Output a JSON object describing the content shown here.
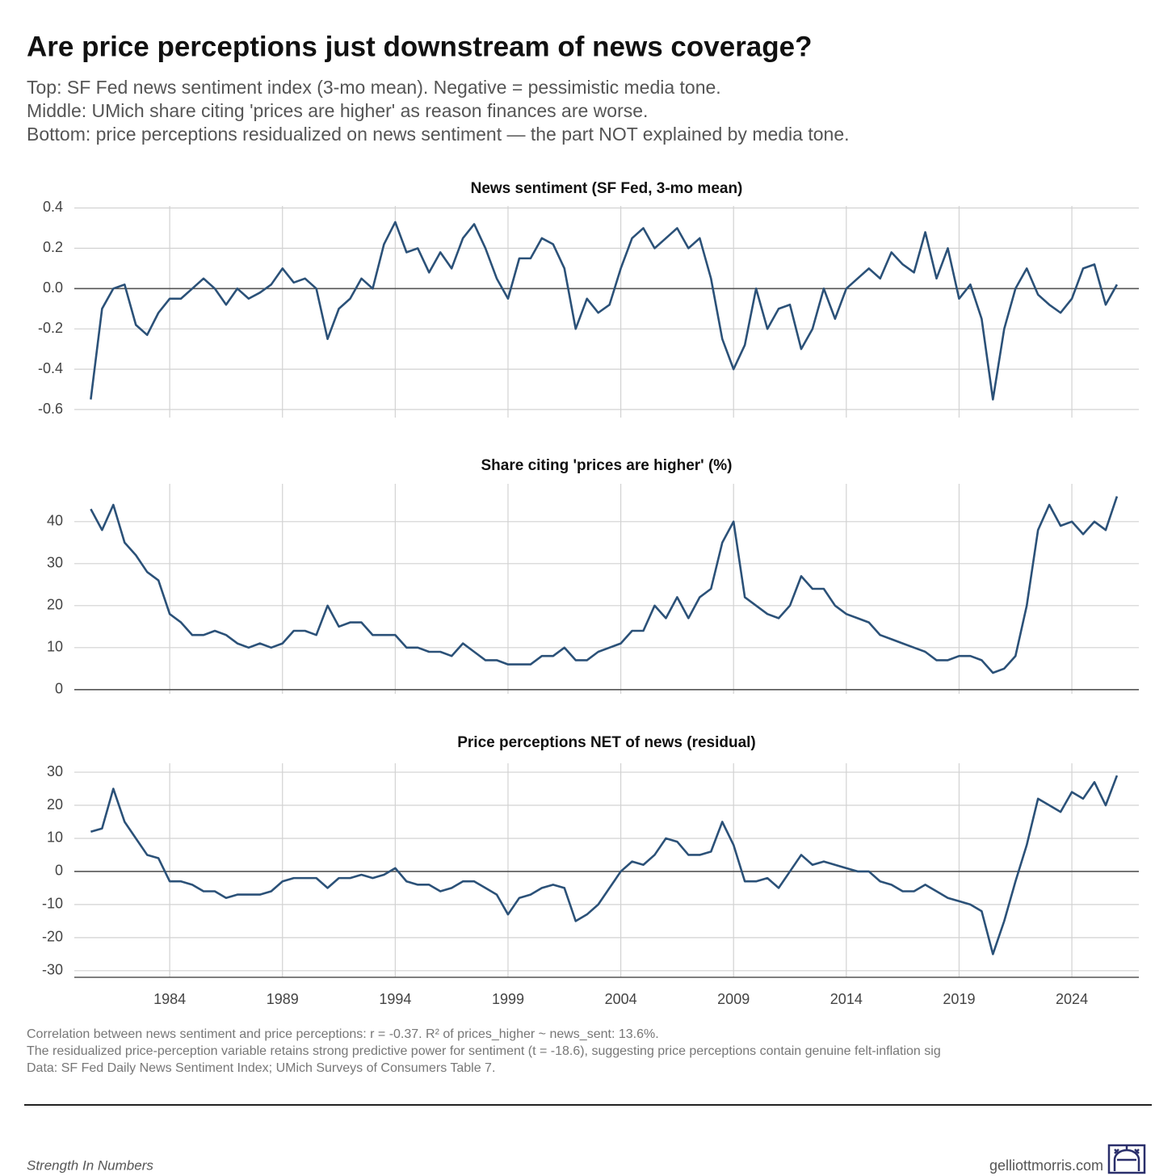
{
  "title": "Are price perceptions just downstream of news coverage?",
  "subtitle": [
    "Top: SF Fed news sentiment index (3-mo mean). Negative = pessimistic media tone.",
    "Middle: UMich share citing 'prices are higher' as reason finances are worse.",
    "Bottom: price perceptions residualized on news sentiment — the part NOT explained by media tone."
  ],
  "notes": [
    "Correlation between news sentiment and price perceptions: r = -0.37. R² of prices_higher ~ news_sent: 13.6%.",
    "The residualized price-perception variable retains strong predictive power for sentiment (t = -18.6), suggesting price perceptions contain genuine felt-inflation sig",
    "Data: SF Fed Daily News Sentiment Index; UMich Surveys of Consumers Table 7."
  ],
  "footer": {
    "left": "Strength In Numbers",
    "right": "gelliottmorris.com"
  },
  "chart_data": [
    {
      "type": "line",
      "title": "News sentiment (SF Fed, 3-mo mean)",
      "x": [
        1980.5,
        1981,
        1981.5,
        1982,
        1982.5,
        1983,
        1983.5,
        1984,
        1984.5,
        1985,
        1985.5,
        1986,
        1986.5,
        1987,
        1987.5,
        1988,
        1988.5,
        1989,
        1989.5,
        1990,
        1990.5,
        1991,
        1991.5,
        1992,
        1992.5,
        1993,
        1993.5,
        1994,
        1994.5,
        1995,
        1995.5,
        1996,
        1996.5,
        1997,
        1997.5,
        1998,
        1998.5,
        1999,
        1999.5,
        2000,
        2000.5,
        2001,
        2001.5,
        2002,
        2002.5,
        2003,
        2003.5,
        2004,
        2004.5,
        2005,
        2005.5,
        2006,
        2006.5,
        2007,
        2007.5,
        2008,
        2008.5,
        2009,
        2009.5,
        2010,
        2010.5,
        2011,
        2011.5,
        2012,
        2012.5,
        2013,
        2013.5,
        2014,
        2014.5,
        2015,
        2015.5,
        2016,
        2016.5,
        2017,
        2017.5,
        2018,
        2018.5,
        2019,
        2019.5,
        2020,
        2020.5,
        2021,
        2021.5,
        2022,
        2022.5,
        2023,
        2023.5,
        2024,
        2024.5,
        2025,
        2025.5,
        2026
      ],
      "series": [
        {
          "color": "#2b5178",
          "values": [
            -0.55,
            -0.1,
            0.0,
            0.02,
            -0.18,
            -0.23,
            -0.12,
            -0.05,
            -0.05,
            0.0,
            0.05,
            0.0,
            -0.08,
            0.0,
            -0.05,
            -0.02,
            0.02,
            0.1,
            0.03,
            0.05,
            0.0,
            -0.25,
            -0.1,
            -0.05,
            0.05,
            0.0,
            0.22,
            0.33,
            0.18,
            0.2,
            0.08,
            0.18,
            0.1,
            0.25,
            0.32,
            0.2,
            0.05,
            -0.05,
            0.15,
            0.15,
            0.25,
            0.22,
            0.1,
            -0.2,
            -0.05,
            -0.12,
            -0.08,
            0.1,
            0.25,
            0.3,
            0.2,
            0.25,
            0.3,
            0.2,
            0.25,
            0.05,
            -0.25,
            -0.4,
            -0.28,
            0.0,
            -0.2,
            -0.1,
            -0.08,
            -0.3,
            -0.2,
            0.0,
            -0.15,
            0.0,
            0.05,
            0.1,
            0.05,
            0.18,
            0.12,
            0.08,
            0.28,
            0.05,
            0.2,
            -0.05,
            0.02,
            -0.15,
            -0.55,
            -0.2,
            0.0,
            0.1,
            -0.03,
            -0.08,
            -0.12,
            -0.05,
            0.1,
            0.12,
            -0.08,
            0.02
          ]
        }
      ],
      "xlim": [
        1979.77,
        2026.97
      ],
      "ylim": [
        -0.64,
        0.41
      ],
      "yticks": [
        {
          "value": -0.6,
          "label": "-0.6"
        },
        -0.4,
        -0.2,
        {
          "value": 0,
          "label": "0.0"
        },
        0.2,
        0.4
      ]
    },
    {
      "type": "line",
      "title": "Share citing 'prices are higher' (%)",
      "x": [
        1980.5,
        1981,
        1981.5,
        1982,
        1982.5,
        1983,
        1983.5,
        1984,
        1984.5,
        1985,
        1985.5,
        1986,
        1986.5,
        1987,
        1987.5,
        1988,
        1988.5,
        1989,
        1989.5,
        1990,
        1990.5,
        1991,
        1991.5,
        1992,
        1992.5,
        1993,
        1993.5,
        1994,
        1994.5,
        1995,
        1995.5,
        1996,
        1996.5,
        1997,
        1997.5,
        1998,
        1998.5,
        1999,
        1999.5,
        2000,
        2000.5,
        2001,
        2001.5,
        2002,
        2002.5,
        2003,
        2003.5,
        2004,
        2004.5,
        2005,
        2005.5,
        2006,
        2006.5,
        2007,
        2007.5,
        2008,
        2008.5,
        2009,
        2009.5,
        2010,
        2010.5,
        2011,
        2011.5,
        2012,
        2012.5,
        2013,
        2013.5,
        2014,
        2014.5,
        2015,
        2015.5,
        2016,
        2016.5,
        2017,
        2017.5,
        2018,
        2018.5,
        2019,
        2019.5,
        2020,
        2020.5,
        2021,
        2021.5,
        2022,
        2022.5,
        2023,
        2023.5,
        2024,
        2024.5,
        2025,
        2025.5,
        2026
      ],
      "series": [
        {
          "color": "#2b5178",
          "values": [
            43,
            38,
            44,
            35,
            32,
            28,
            26,
            18,
            16,
            13,
            13,
            14,
            13,
            11,
            10,
            11,
            10,
            11,
            14,
            14,
            13,
            20,
            15,
            16,
            16,
            13,
            13,
            13,
            10,
            10,
            9,
            9,
            8,
            11,
            9,
            7,
            7,
            6,
            6,
            6,
            8,
            8,
            10,
            7,
            7,
            9,
            10,
            11,
            14,
            14,
            20,
            17,
            22,
            17,
            22,
            24,
            35,
            40,
            22,
            20,
            18,
            17,
            20,
            27,
            24,
            24,
            20,
            18,
            17,
            16,
            13,
            12,
            11,
            10,
            9,
            7,
            7,
            8,
            8,
            7,
            4,
            5,
            8,
            20,
            38,
            44,
            39,
            40,
            37,
            40,
            38,
            46
          ]
        }
      ],
      "xlim": [
        1979.77,
        2026.97
      ],
      "ylim": [
        -1,
        49
      ],
      "yticks": [
        0,
        10,
        20,
        30,
        40
      ]
    },
    {
      "type": "line",
      "title": "Price perceptions NET of news (residual)",
      "x": [
        1980.5,
        1981,
        1981.5,
        1982,
        1982.5,
        1983,
        1983.5,
        1984,
        1984.5,
        1985,
        1985.5,
        1986,
        1986.5,
        1987,
        1987.5,
        1988,
        1988.5,
        1989,
        1989.5,
        1990,
        1990.5,
        1991,
        1991.5,
        1992,
        1992.5,
        1993,
        1993.5,
        1994,
        1994.5,
        1995,
        1995.5,
        1996,
        1996.5,
        1997,
        1997.5,
        1998,
        1998.5,
        1999,
        1999.5,
        2000,
        2000.5,
        2001,
        2001.5,
        2002,
        2002.5,
        2003,
        2003.5,
        2004,
        2004.5,
        2005,
        2005.5,
        2006,
        2006.5,
        2007,
        2007.5,
        2008,
        2008.5,
        2009,
        2009.5,
        2010,
        2010.5,
        2011,
        2011.5,
        2012,
        2012.5,
        2013,
        2013.5,
        2014,
        2014.5,
        2015,
        2015.5,
        2016,
        2016.5,
        2017,
        2017.5,
        2018,
        2018.5,
        2019,
        2019.5,
        2020,
        2020.5,
        2021,
        2021.5,
        2022,
        2022.5,
        2023,
        2023.5,
        2024,
        2024.5,
        2025,
        2025.5,
        2026
      ],
      "series": [
        {
          "color": "#2b5178",
          "values": [
            12,
            13,
            25,
            15,
            10,
            5,
            4,
            -3,
            -3,
            -4,
            -6,
            -6,
            -8,
            -7,
            -7,
            -7,
            -6,
            -3,
            -2,
            -2,
            -2,
            -5,
            -2,
            -2,
            -1,
            -2,
            -1,
            1,
            -3,
            -4,
            -4,
            -6,
            -5,
            -3,
            -3,
            -5,
            -7,
            -13,
            -8,
            -7,
            -5,
            -4,
            -5,
            -15,
            -13,
            -10,
            -5,
            0,
            3,
            2,
            5,
            10,
            9,
            5,
            5,
            6,
            15,
            8,
            -3,
            -3,
            -2,
            -5,
            0,
            5,
            2,
            3,
            2,
            1,
            0,
            0,
            -3,
            -4,
            -6,
            -6,
            -4,
            -6,
            -8,
            -9,
            -10,
            -12,
            -25,
            -15,
            -3,
            8,
            22,
            20,
            18,
            24,
            22,
            27,
            20,
            29
          ]
        }
      ],
      "xlim": [
        1979.77,
        2026.97
      ],
      "ylim": [
        -32,
        32.7
      ],
      "yticks": [
        -30,
        -20,
        -10,
        0,
        10,
        20,
        30
      ],
      "xticks": [
        1984,
        1989,
        1994,
        1999,
        2004,
        2009,
        2014,
        2019,
        2024
      ]
    }
  ]
}
